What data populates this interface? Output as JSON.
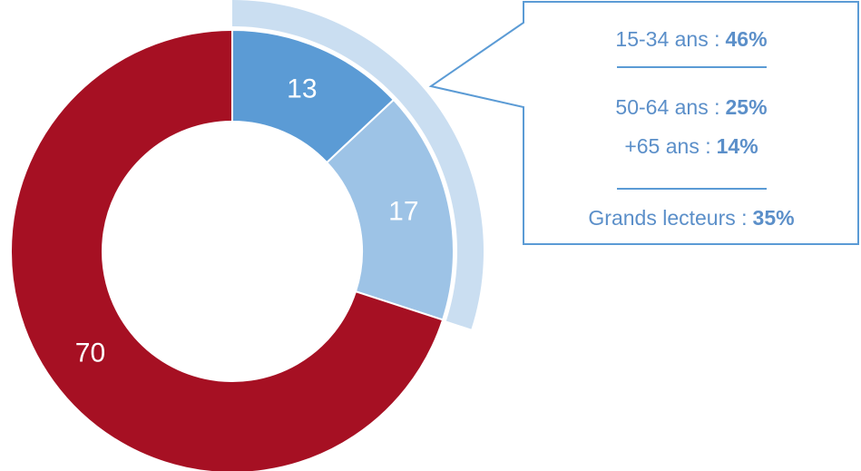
{
  "chart_data": {
    "type": "donut",
    "values": [
      13,
      17,
      70
    ],
    "colors": [
      "#5b9bd5",
      "#9dc3e6",
      "#a61023"
    ],
    "highlight_color": "#cadef1",
    "annotations": [
      {
        "label": "15-34 ans :",
        "value": "46%"
      },
      {
        "label": "50-64 ans :",
        "value": "25%"
      },
      {
        "label": "+65 ans :",
        "value": "14%"
      },
      {
        "label": "Grands lecteurs :",
        "value": "35%"
      }
    ]
  }
}
